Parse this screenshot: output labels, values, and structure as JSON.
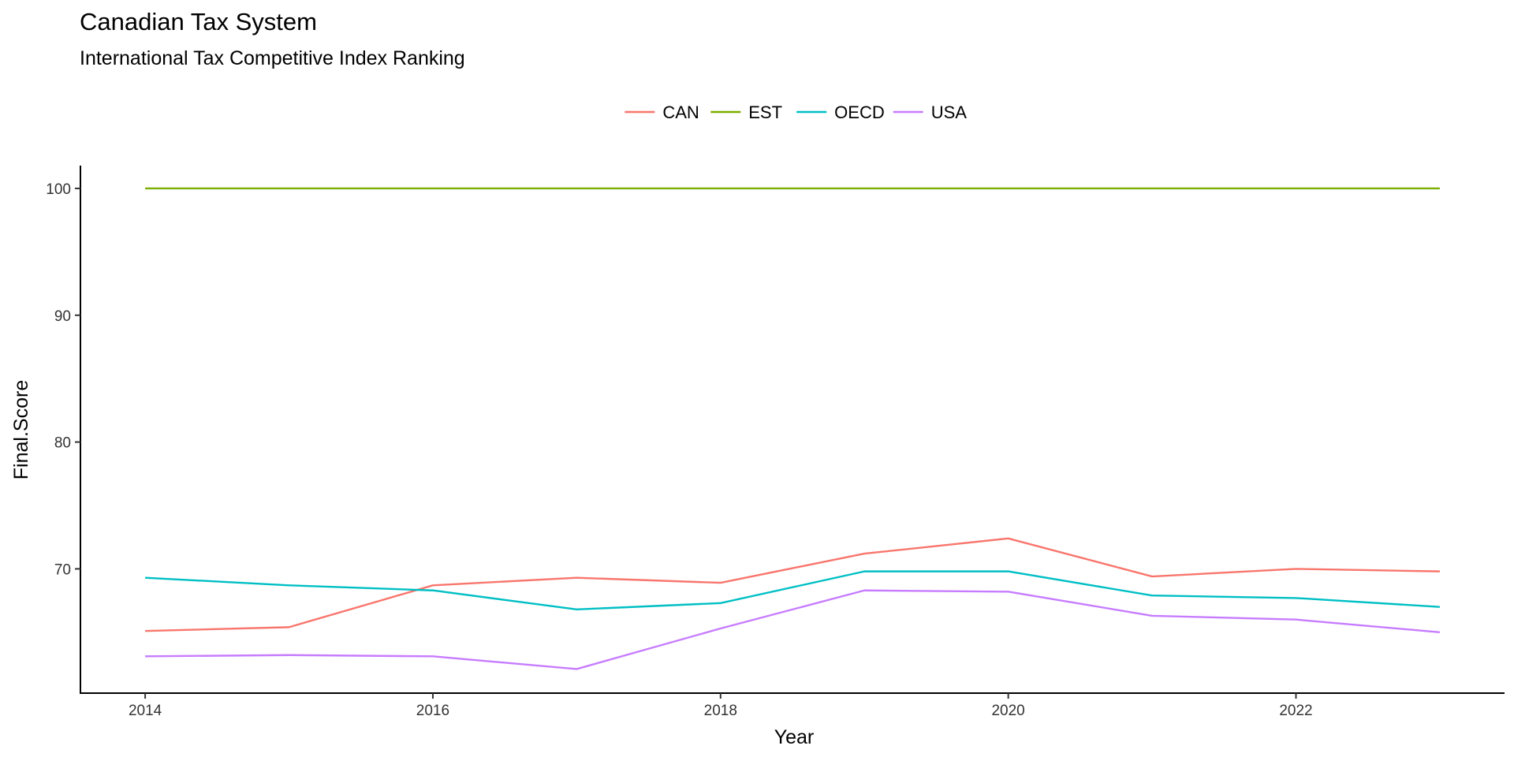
{
  "chart_data": {
    "type": "line",
    "title": "Canadian Tax System",
    "subtitle": "International Tax Competitive Index Ranking",
    "xlabel": "Year",
    "ylabel": "Final.Score",
    "x": [
      2014,
      2015,
      2016,
      2017,
      2018,
      2019,
      2020,
      2021,
      2022,
      2023
    ],
    "xlim": [
      2013.55,
      2023.45
    ],
    "ylim": [
      60.2,
      101.8
    ],
    "xticks": [
      2014,
      2016,
      2018,
      2020,
      2022
    ],
    "yticks": [
      70,
      80,
      90,
      100
    ],
    "grid": false,
    "legend_position": "top",
    "series": [
      {
        "name": "CAN",
        "color": "#F8766D",
        "values": [
          65.1,
          65.4,
          68.7,
          69.3,
          68.9,
          71.2,
          72.4,
          69.4,
          70.0,
          69.8
        ]
      },
      {
        "name": "EST",
        "color": "#7CAE00",
        "values": [
          100,
          100,
          100,
          100,
          100,
          100,
          100,
          100,
          100,
          100
        ]
      },
      {
        "name": "OECD",
        "color": "#00BFC4",
        "values": [
          69.3,
          68.7,
          68.3,
          66.8,
          67.3,
          69.8,
          69.8,
          67.9,
          67.7,
          67.0
        ]
      },
      {
        "name": "USA",
        "color": "#C77CFF",
        "values": [
          63.1,
          63.2,
          63.1,
          62.1,
          65.3,
          68.3,
          68.2,
          66.3,
          66.0,
          65.0
        ]
      }
    ]
  }
}
